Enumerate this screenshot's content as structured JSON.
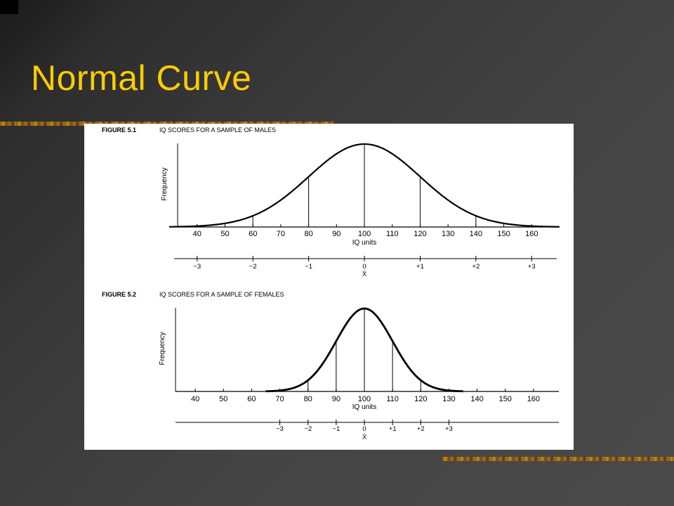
{
  "slide": {
    "title": "Normal Curve"
  },
  "chart_data": [
    {
      "type": "line",
      "figure_label": "FIGURE 5.1",
      "title": "IQ SCORES FOR A SAMPLE OF MALES",
      "xlabel": "IQ units",
      "ylabel": "Frequency",
      "x_ticks": [
        40,
        50,
        60,
        70,
        80,
        90,
        100,
        110,
        120,
        130,
        140,
        150,
        160
      ],
      "xlim": [
        33,
        169
      ],
      "distribution": {
        "kind": "normal",
        "mean": 100,
        "sd": 20
      },
      "verticals_at": [
        60,
        80,
        100,
        120,
        140
      ],
      "sd_scale": {
        "positions": [
          40,
          60,
          80,
          100,
          120,
          140,
          160
        ],
        "labels": [
          "−3",
          "−2",
          "−1",
          "0",
          "+1",
          "+2",
          "+3"
        ]
      },
      "mean_label": "X̄"
    },
    {
      "type": "line",
      "figure_label": "FIGURE 5.2",
      "title": "IQ SCORES FOR A SAMPLE OF FEMALES",
      "xlabel": "IQ units",
      "ylabel": "Frequency",
      "x_ticks": [
        40,
        50,
        60,
        70,
        80,
        90,
        100,
        110,
        120,
        130,
        140,
        150,
        160
      ],
      "xlim": [
        33,
        169
      ],
      "distribution": {
        "kind": "normal",
        "mean": 100,
        "sd": 10
      },
      "verticals_at": [
        80,
        90,
        100,
        110,
        120
      ],
      "sd_scale": {
        "positions": [
          70,
          80,
          90,
          100,
          110,
          120,
          130
        ],
        "labels": [
          "−3",
          "−2",
          "−1",
          "0",
          "+1",
          "+2",
          "+3"
        ]
      },
      "mean_label": "X̄"
    }
  ]
}
